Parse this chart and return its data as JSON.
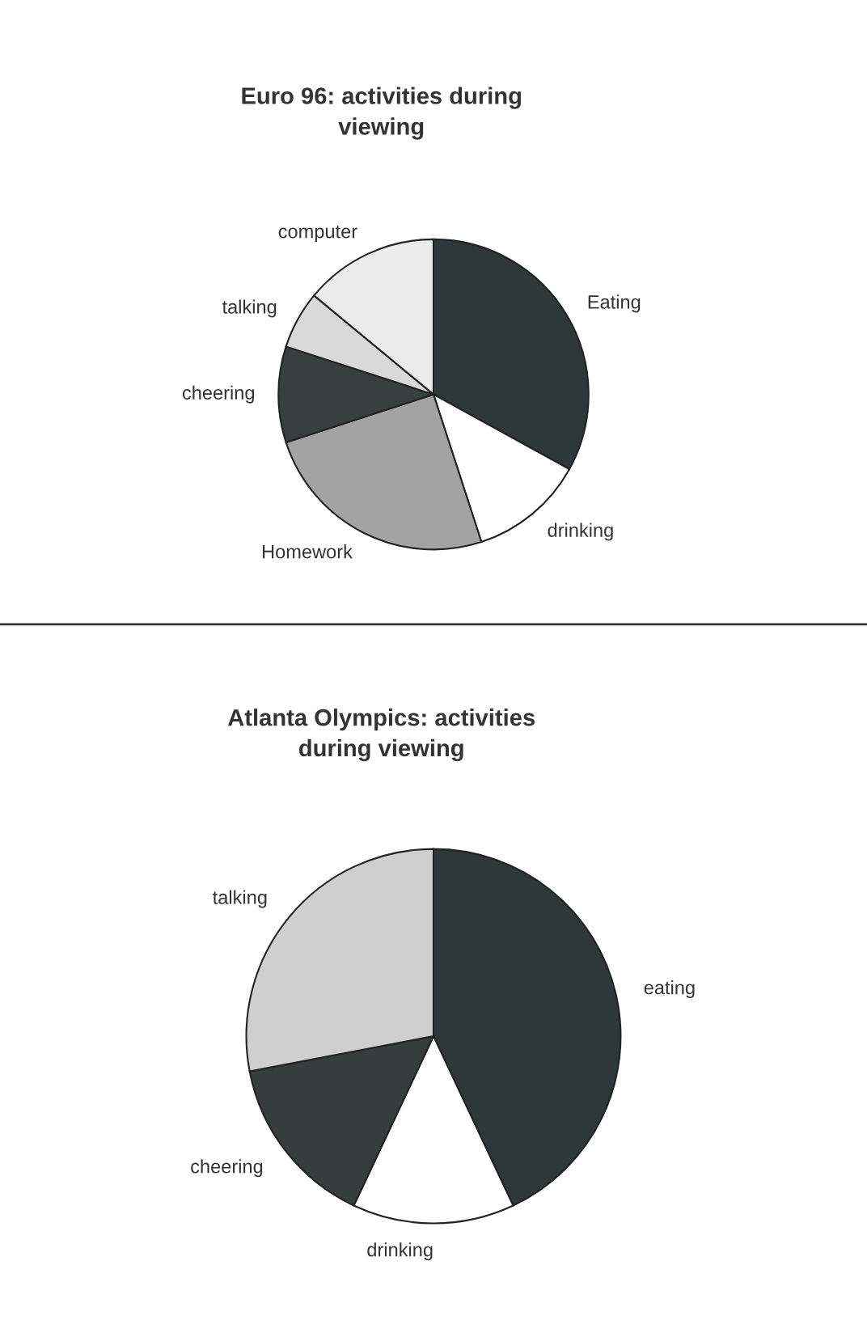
{
  "chart_data": [
    {
      "type": "pie",
      "title": "Euro 96: activities during\nviewing",
      "categories": [
        "Eating",
        "drinking",
        "Homework",
        "cheering",
        "talking",
        "computer"
      ],
      "values": [
        33,
        12,
        25,
        10,
        6,
        14
      ],
      "colors": [
        "#2e3838",
        "#ffffff",
        "#a3a3a3",
        "#373f3f",
        "#d9d9d9",
        "#ececec"
      ]
    },
    {
      "type": "pie",
      "title": "Atlanta Olympics: activities\nduring viewing",
      "categories": [
        "eating",
        "drinking",
        "cheering",
        "talking"
      ],
      "values": [
        43,
        14,
        15,
        28
      ],
      "colors": [
        "#2e3838",
        "#ffffff",
        "#353d3d",
        "#cfcfcf"
      ]
    }
  ]
}
